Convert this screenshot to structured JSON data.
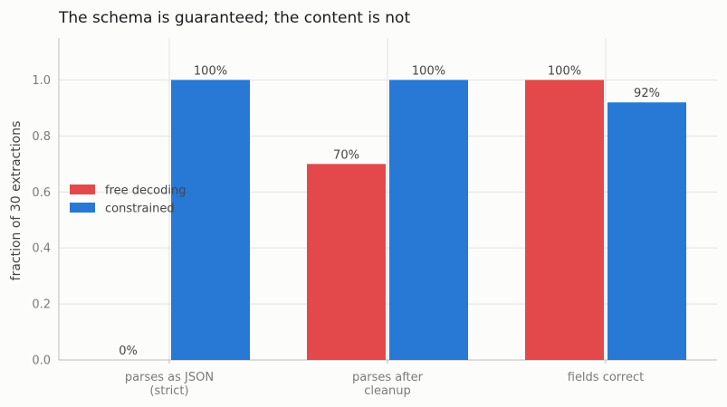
{
  "chart_data": {
    "type": "bar",
    "title": "The schema is guaranteed; the content is not",
    "ylabel": "fraction of 30 extractions",
    "xlabel": "",
    "ylim": [
      0,
      1.15
    ],
    "yticks": [
      "0.0",
      "0.2",
      "0.4",
      "0.6",
      "0.8",
      "1.0"
    ],
    "categories": [
      [
        "parses as JSON",
        "(strict)"
      ],
      [
        "parses after",
        "cleanup"
      ],
      [
        "fields correct"
      ]
    ],
    "series": [
      {
        "name": "free decoding",
        "color": "#e3494a",
        "values": [
          0.0,
          0.7,
          1.0
        ],
        "labels": [
          "0%",
          "70%",
          "100%"
        ]
      },
      {
        "name": "constrained",
        "color": "#2878d6",
        "values": [
          1.0,
          1.0,
          0.92
        ],
        "labels": [
          "100%",
          "100%",
          "92%"
        ]
      }
    ],
    "grid": true,
    "legend_position": "center-left"
  }
}
